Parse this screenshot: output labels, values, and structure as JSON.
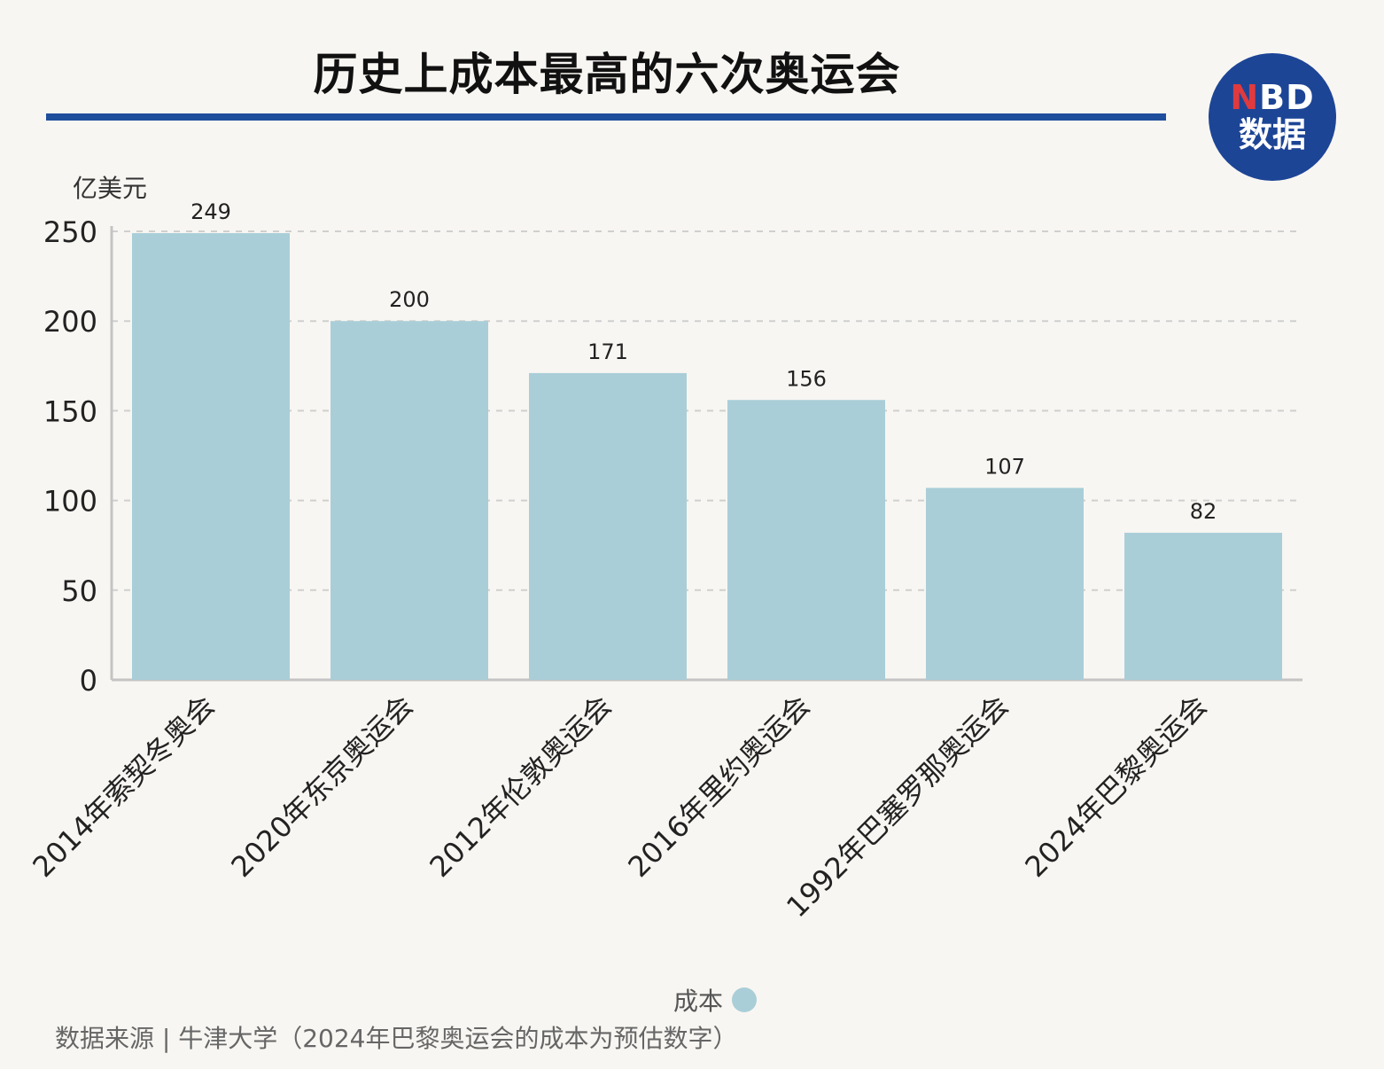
{
  "title": "历史上成本最高的六次奥运会",
  "logo": {
    "line1_accent": "N",
    "line1_rest": "BD",
    "line2": "数据"
  },
  "source": "数据来源 | 牛津大学（2024年巴黎奥运会的成本为预估数字）",
  "chart_data": {
    "type": "bar",
    "title": "历史上成本最高的六次奥运会",
    "ylabel": "亿美元",
    "xlabel": "",
    "ylim": [
      0,
      250
    ],
    "yticks": [
      0,
      50,
      100,
      150,
      200,
      250
    ],
    "grid": true,
    "legend_placement": "bottom",
    "categories": [
      "2014年索契冬奥会",
      "2020年东京奥运会",
      "2012年伦敦奥运会",
      "2016年里约奥运会",
      "1992年巴塞罗那奥运会",
      "2024年巴黎奥运会"
    ],
    "series": [
      {
        "name": "成本",
        "values": [
          249,
          200,
          171,
          156,
          107,
          82
        ],
        "color": "#a9ced8"
      }
    ]
  }
}
